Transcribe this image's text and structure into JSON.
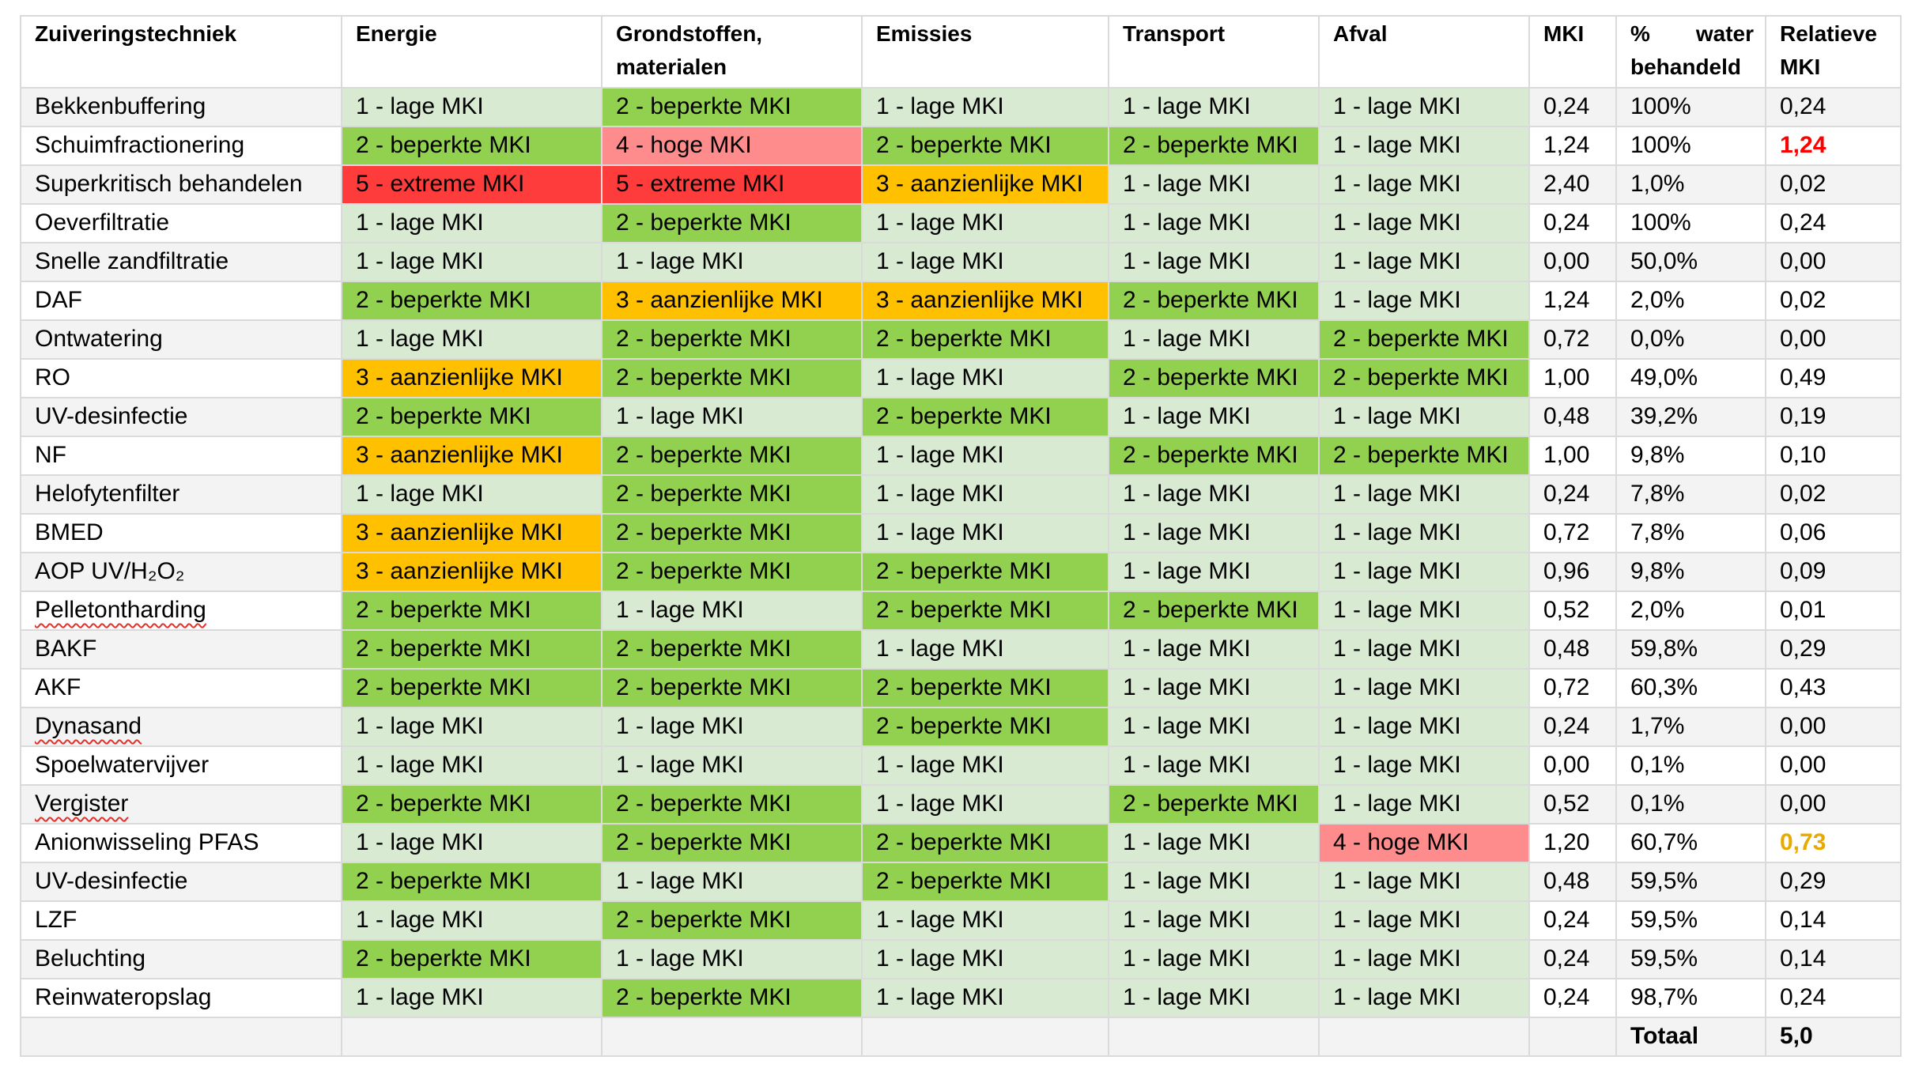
{
  "table": {
    "headers": [
      "Zuiveringstechniek",
      "Energie",
      "Grondstoffen, materialen",
      "Emissies",
      "Transport",
      "Afval",
      "MKI",
      "% water behandeld",
      "Relatieve MKI"
    ],
    "rows": [
      {
        "technique": "Bekkenbuffering",
        "scores": [
          "1 - lage MKI",
          "2 - beperkte MKI",
          "1 - lage MKI",
          "1 - lage MKI",
          "1 - lage MKI"
        ],
        "mki": "0,24",
        "water": "100%",
        "relative": "0,24"
      },
      {
        "technique": "Schuimfractionering",
        "scores": [
          "2 - beperkte MKI",
          "4 - hoge MKI",
          "2 - beperkte MKI",
          "2 - beperkte MKI",
          "1 - lage MKI"
        ],
        "mki": "1,24",
        "water": "100%",
        "relative": "1,24",
        "relative_highlight": "red"
      },
      {
        "technique": "Superkritisch behandelen",
        "scores": [
          "5 - extreme MKI",
          "5 - extreme MKI",
          "3 - aanzienlijke MKI",
          "1 - lage MKI",
          "1 - lage MKI"
        ],
        "mki": "2,40",
        "water": "1,0%",
        "relative": "0,02"
      },
      {
        "technique": "Oeverfiltratie",
        "scores": [
          "1 - lage MKI",
          "2 - beperkte MKI",
          "1 - lage MKI",
          "1 - lage MKI",
          "1 - lage MKI"
        ],
        "mki": "0,24",
        "water": "100%",
        "relative": "0,24"
      },
      {
        "technique": "Snelle zandfiltratie",
        "scores": [
          "1 - lage MKI",
          "1 - lage MKI",
          "1 - lage MKI",
          "1 - lage MKI",
          "1 - lage MKI"
        ],
        "mki": "0,00",
        "water": "50,0%",
        "relative": "0,00"
      },
      {
        "technique": "DAF",
        "scores": [
          "2 - beperkte MKI",
          "3 - aanzienlijke MKI",
          "3 - aanzienlijke MKI",
          "2 - beperkte MKI",
          "1 - lage MKI"
        ],
        "mki": "1,24",
        "water": "2,0%",
        "relative": "0,02"
      },
      {
        "technique": "Ontwatering",
        "scores": [
          "1 - lage MKI",
          "2 - beperkte MKI",
          "2 - beperkte MKI",
          "1 - lage MKI",
          "2 - beperkte MKI"
        ],
        "mki": "0,72",
        "water": "0,0%",
        "relative": "0,00"
      },
      {
        "technique": "RO",
        "scores": [
          "3 - aanzienlijke MKI",
          "2 - beperkte MKI",
          "1 - lage MKI",
          "2 - beperkte MKI",
          "2 - beperkte MKI"
        ],
        "mki": "1,00",
        "water": "49,0%",
        "relative": "0,49"
      },
      {
        "technique": "UV-desinfectie",
        "scores": [
          "2 - beperkte MKI",
          "1 - lage MKI",
          "2 - beperkte MKI",
          "1 - lage MKI",
          "1 - lage MKI"
        ],
        "mki": "0,48",
        "water": "39,2%",
        "relative": "0,19"
      },
      {
        "technique": "NF",
        "scores": [
          "3 - aanzienlijke MKI",
          "2 - beperkte MKI",
          "1 - lage MKI",
          "2 - beperkte MKI",
          "2 - beperkte MKI"
        ],
        "mki": "1,00",
        "water": "9,8%",
        "relative": "0,10"
      },
      {
        "technique": "Helofytenfilter",
        "scores": [
          "1 - lage MKI",
          "2 - beperkte MKI",
          "1 - lage MKI",
          "1 - lage MKI",
          "1 - lage MKI"
        ],
        "mki": "0,24",
        "water": "7,8%",
        "relative": "0,02"
      },
      {
        "technique": "BMED",
        "scores": [
          "3 - aanzienlijke MKI",
          "2 - beperkte MKI",
          "1 - lage MKI",
          "1 - lage MKI",
          "1 - lage MKI"
        ],
        "mki": "0,72",
        "water": "7,8%",
        "relative": "0,06"
      },
      {
        "technique": "AOP UV/H₂O₂",
        "scores": [
          "3 - aanzienlijke MKI",
          "2 - beperkte MKI",
          "2 - beperkte MKI",
          "1 - lage MKI",
          "1 - lage MKI"
        ],
        "mki": "0,96",
        "water": "9,8%",
        "relative": "0,09"
      },
      {
        "technique": "Pelletontharding",
        "scores": [
          "2 - beperkte MKI",
          "1 - lage MKI",
          "2 - beperkte MKI",
          "2 - beperkte MKI",
          "1 - lage MKI"
        ],
        "mki": "0,52",
        "water": "2,0%",
        "relative": "0,01",
        "spellcheck_underline": true
      },
      {
        "technique": "BAKF",
        "scores": [
          "2 - beperkte MKI",
          "2 - beperkte MKI",
          "1 - lage MKI",
          "1 - lage MKI",
          "1 - lage MKI"
        ],
        "mki": "0,48",
        "water": "59,8%",
        "relative": "0,29"
      },
      {
        "technique": "AKF",
        "scores": [
          "2 - beperkte MKI",
          "2 - beperkte MKI",
          "2 - beperkte MKI",
          "1 - lage MKI",
          "1 - lage MKI"
        ],
        "mki": "0,72",
        "water": "60,3%",
        "relative": "0,43"
      },
      {
        "technique": "Dynasand",
        "scores": [
          "1 - lage MKI",
          "1 - lage MKI",
          "2 - beperkte MKI",
          "1 - lage MKI",
          "1 - lage MKI"
        ],
        "mki": "0,24",
        "water": "1,7%",
        "relative": "0,00",
        "spellcheck_underline": true
      },
      {
        "technique": "Spoelwatervijver",
        "scores": [
          "1 - lage MKI",
          "1 - lage MKI",
          "1 - lage MKI",
          "1 - lage MKI",
          "1 - lage MKI"
        ],
        "mki": "0,00",
        "water": "0,1%",
        "relative": "0,00"
      },
      {
        "technique": "Vergister",
        "scores": [
          "2 - beperkte MKI",
          "2 - beperkte MKI",
          "1 - lage MKI",
          "2 - beperkte MKI",
          "1 - lage MKI"
        ],
        "mki": "0,52",
        "water": "0,1%",
        "relative": "0,00",
        "spellcheck_underline": true
      },
      {
        "technique": "Anionwisseling PFAS",
        "scores": [
          "1 - lage MKI",
          "2 - beperkte MKI",
          "2 - beperkte MKI",
          "1 - lage MKI",
          "4 - hoge MKI"
        ],
        "mki": "1,20",
        "water": "60,7%",
        "relative": "0,73",
        "relative_highlight": "gold"
      },
      {
        "technique": "UV-desinfectie",
        "scores": [
          "2 - beperkte MKI",
          "1 - lage MKI",
          "2 - beperkte MKI",
          "1 - lage MKI",
          "1 - lage MKI"
        ],
        "mki": "0,48",
        "water": "59,5%",
        "relative": "0,29"
      },
      {
        "technique": "LZF",
        "scores": [
          "1 - lage MKI",
          "2 - beperkte MKI",
          "1 - lage MKI",
          "1 - lage MKI",
          "1 - lage MKI"
        ],
        "mki": "0,24",
        "water": "59,5%",
        "relative": "0,14"
      },
      {
        "technique": "Beluchting",
        "scores": [
          "2 - beperkte MKI",
          "1 - lage MKI",
          "1 - lage MKI",
          "1 - lage MKI",
          "1 - lage MKI"
        ],
        "mki": "0,24",
        "water": "59,5%",
        "relative": "0,14"
      },
      {
        "technique": "Reinwateropslag",
        "scores": [
          "1 - lage MKI",
          "2 - beperkte MKI",
          "1 - lage MKI",
          "1 - lage MKI",
          "1 - lage MKI"
        ],
        "mki": "0,24",
        "water": "98,7%",
        "relative": "0,24"
      }
    ],
    "total": {
      "label": "Totaal",
      "value": "5,0"
    }
  },
  "colors": {
    "score_levels": {
      "1": "#d9ead3",
      "2": "#92d050",
      "3": "#ffc000",
      "4": "#ff8c8c",
      "5": "#ff3c3c"
    },
    "stripe": "#f3f3f3",
    "row_base": "#ffffff",
    "relative_highlight": {
      "red": "#ff0000",
      "gold": "#e8a900"
    }
  }
}
